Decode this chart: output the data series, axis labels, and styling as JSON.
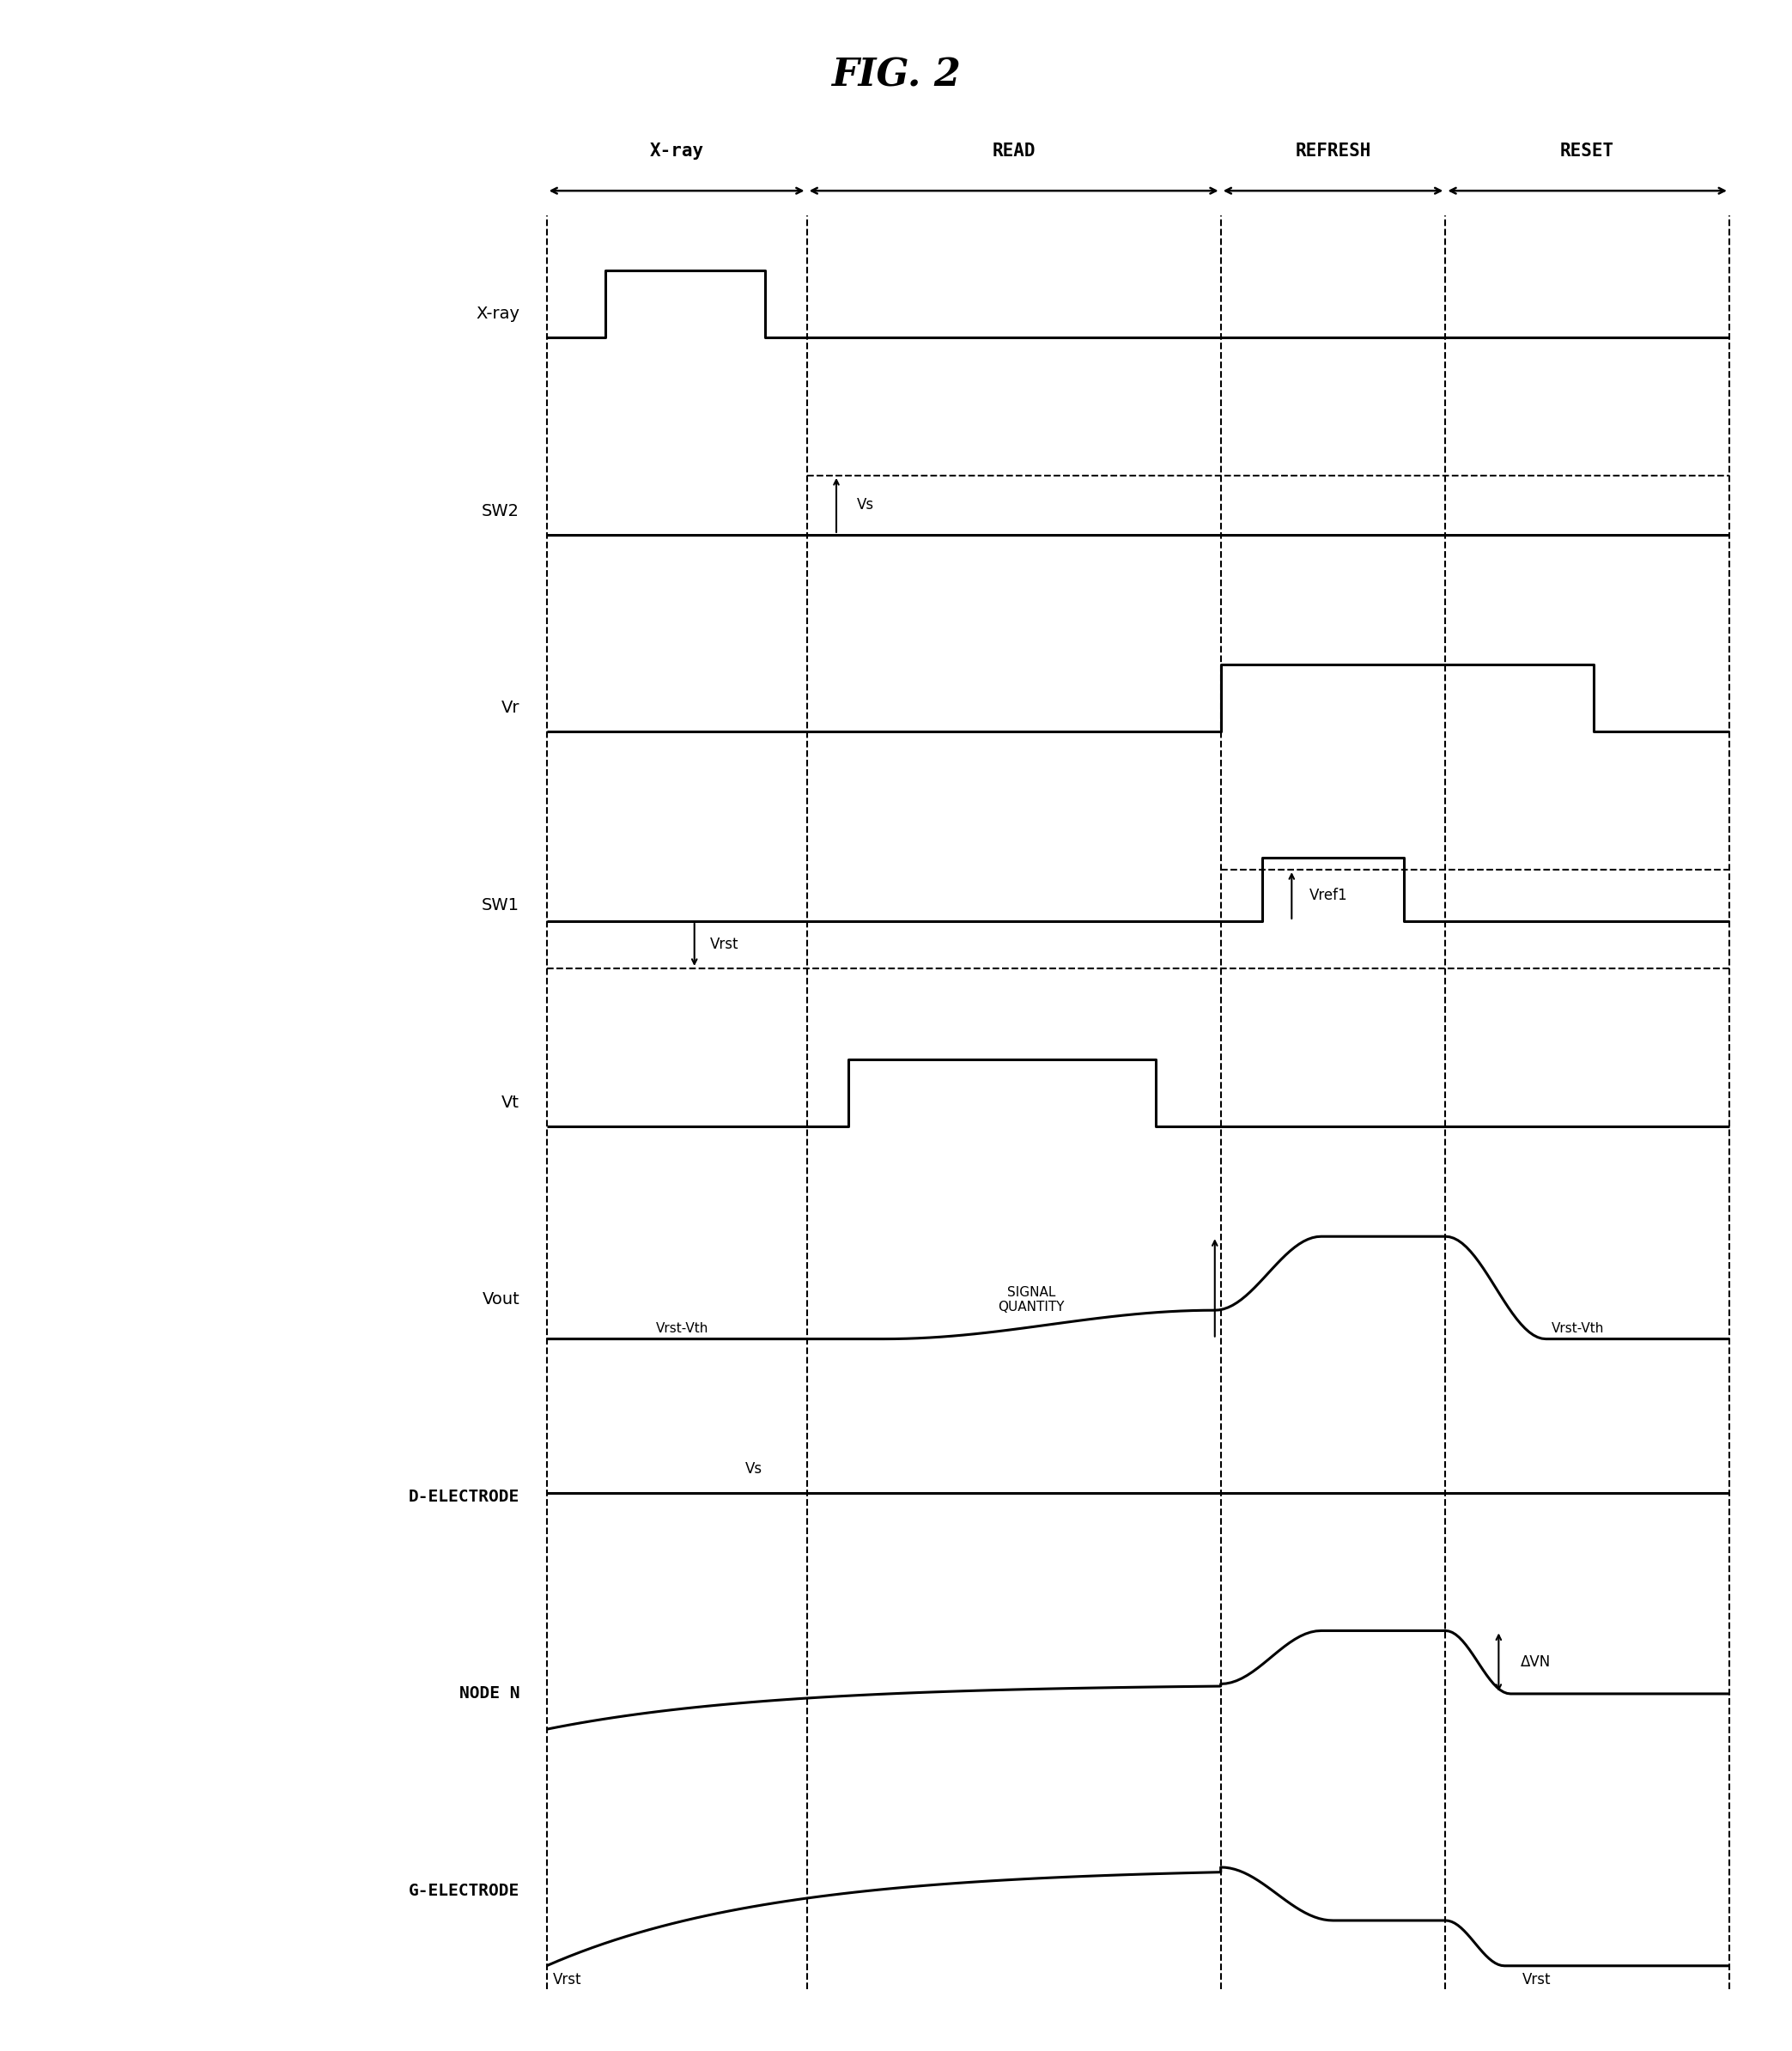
{
  "title": "FIG. 2",
  "title_fontsize": 32,
  "background_color": "#ffffff",
  "signal_labels": [
    "X-ray",
    "SW2",
    "Vr",
    "SW1",
    "Vt",
    "Vout",
    "D-ELECTRODE",
    "NODE N",
    "G-ELECTRODE"
  ],
  "phase_labels": [
    "X-ray",
    "READ",
    "REFRESH",
    "RESET"
  ],
  "phase_boundaries": [
    0.0,
    0.22,
    0.57,
    0.76,
    1.0
  ],
  "line_color": "#000000",
  "lw": 2.2
}
